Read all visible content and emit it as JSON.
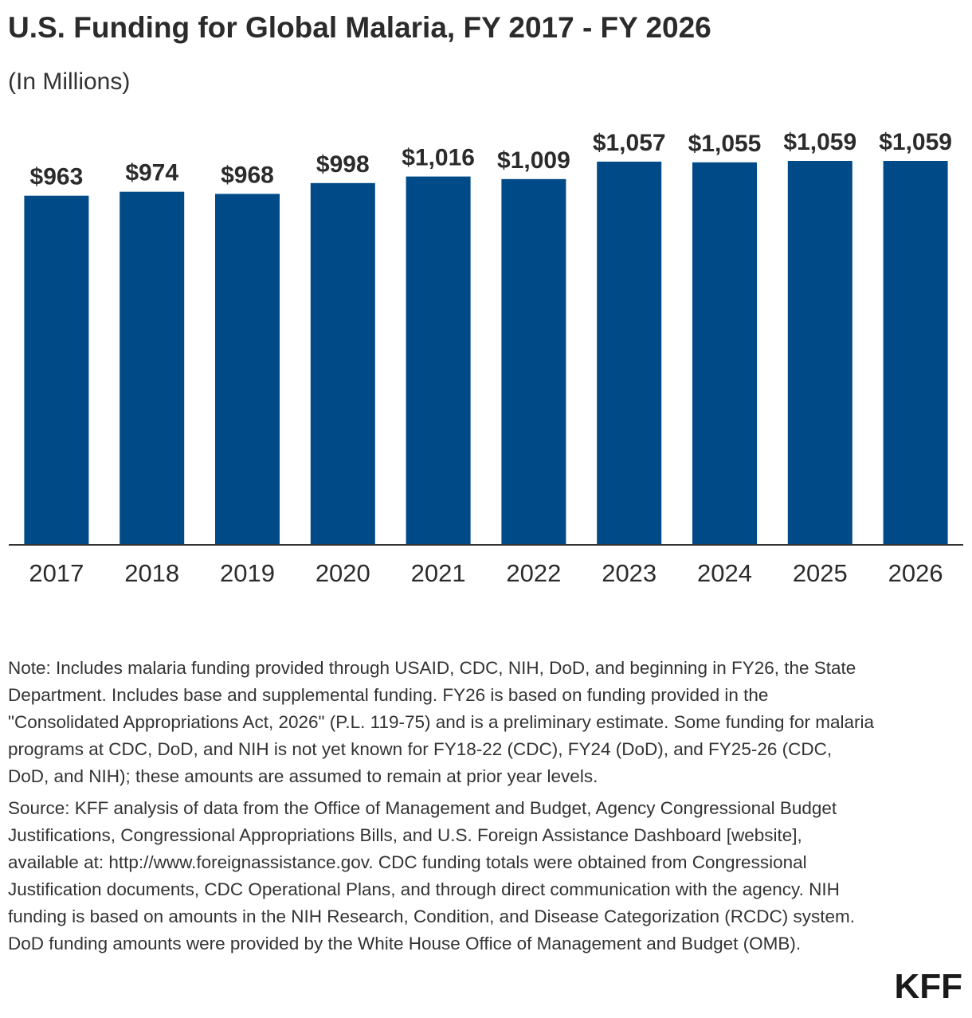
{
  "chart_data": {
    "type": "bar",
    "title": "U.S. Funding for Global Malaria, FY 2017 - FY 2026",
    "subtitle": "(In Millions)",
    "categories": [
      "2017",
      "2018",
      "2019",
      "2020",
      "2021",
      "2022",
      "2023",
      "2024",
      "2025",
      "2026"
    ],
    "values": [
      963,
      974,
      968,
      998,
      1016,
      1009,
      1057,
      1055,
      1059,
      1059
    ],
    "data_labels": [
      "$963",
      "$974",
      "$968",
      "$998",
      "$1,016",
      "$1,009",
      "$1,057",
      "$1,055",
      "$1,059",
      "$1,059"
    ],
    "xlabel": "",
    "ylabel": "",
    "ylim": [
      0,
      1059
    ],
    "grid": false,
    "legend": "none",
    "bar_color": "#004b87",
    "axis_color": "#333333"
  },
  "notes": {
    "note": "Note: Includes malaria funding provided through USAID, CDC, NIH, DoD, and beginning in FY26, the State Department. Includes base and supplemental funding. FY26 is based on funding provided in the \"Consolidated Appropriations Act, 2026\" (P.L. 119-75) and is a preliminary estimate. Some funding for malaria programs at CDC, DoD, and NIH is not yet known for FY18-22 (CDC), FY24 (DoD), and FY25-26 (CDC, DoD, and NIH); these amounts are assumed to remain at prior year levels.",
    "source": "Source: KFF analysis of data from the Office of Management and Budget, Agency Congressional Budget Justifications, Congressional Appropriations Bills, and U.S. Foreign Assistance Dashboard [website], available at: http://www.foreignassistance.gov. CDC funding totals were obtained from Congressional Justification documents, CDC Operational Plans, and through direct communication with the agency. NIH funding is based on amounts in the NIH Research, Condition, and Disease Categorization (RCDC) system. DoD funding amounts were provided by the White House Office of Management and Budget (OMB)."
  },
  "branding": {
    "logo_text": "KFF"
  }
}
